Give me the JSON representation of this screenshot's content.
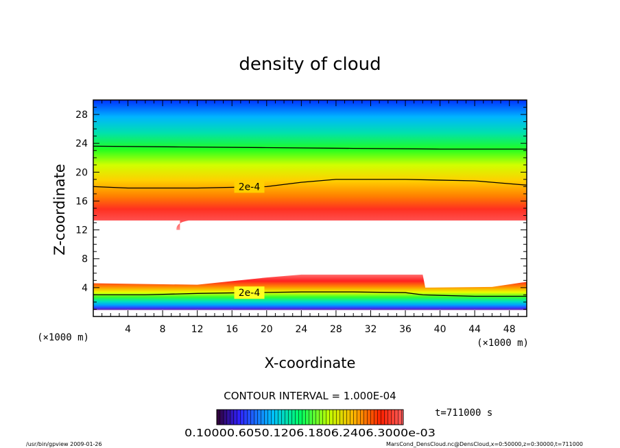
{
  "chart_data": {
    "type": "heatmap",
    "title": "density of cloud",
    "xlabel": "X-coordinate",
    "ylabel": "Z-coordinate",
    "x_unit": "(×1000 m)",
    "y_unit": "(×1000 m)",
    "xlim": [
      0,
      50
    ],
    "ylim": [
      0,
      30
    ],
    "xticks": [
      4,
      8,
      12,
      16,
      20,
      24,
      28,
      32,
      36,
      40,
      44,
      48
    ],
    "yticks": [
      4,
      8,
      12,
      16,
      20,
      24,
      28
    ],
    "colormap": [
      "#0000ff",
      "#00c8ff",
      "#00ff00",
      "#ffff00",
      "#ff0000",
      "#ffffff"
    ],
    "upper_cloud": {
      "base_z": 13.3,
      "base_z_x0_to_10": 12.0,
      "peak_band_z": [
        14.0,
        16.5
      ]
    },
    "lower_cloud": {
      "top_z_x0_to_38": 4.6,
      "top_z_x20_to_38": 5.8,
      "top_z_x39_to_50": 4.3,
      "bottom_z": 0.9
    },
    "contours": [
      {
        "label": "2e-4",
        "points": [
          [
            0,
            18.0
          ],
          [
            4,
            17.8
          ],
          [
            12,
            17.8
          ],
          [
            20,
            18.0
          ],
          [
            24,
            18.6
          ],
          [
            28,
            19.0
          ],
          [
            36,
            19.0
          ],
          [
            44,
            18.8
          ],
          [
            50,
            18.2
          ]
        ]
      },
      {
        "label": "",
        "points": [
          [
            0,
            23.6
          ],
          [
            10,
            23.5
          ],
          [
            20,
            23.4
          ],
          [
            30,
            23.3
          ],
          [
            40,
            23.2
          ],
          [
            50,
            23.2
          ]
        ]
      },
      {
        "label": "2e-4",
        "points": [
          [
            0,
            3.0
          ],
          [
            6,
            3.0
          ],
          [
            12,
            3.2
          ],
          [
            18,
            3.3
          ],
          [
            24,
            3.4
          ],
          [
            30,
            3.4
          ],
          [
            36,
            3.3
          ],
          [
            38,
            3.0
          ],
          [
            44,
            2.8
          ],
          [
            50,
            2.8
          ]
        ]
      }
    ],
    "contour_interval_text": "CONTOUR INTERVAL = 1.000E-04",
    "time_text": "t=711000 s",
    "colorbar_labels_text": "0.10000.6050.1206.1806.2406.3000e-03"
  },
  "footer": {
    "left": "/usr/bin/gpview   2009-01-26",
    "right": "MarsCond_DensCloud.nc@DensCloud,x=0:50000,z=0:30000,t=711000"
  },
  "colors": {
    "frame": "#000000",
    "background": "#ffffff"
  }
}
